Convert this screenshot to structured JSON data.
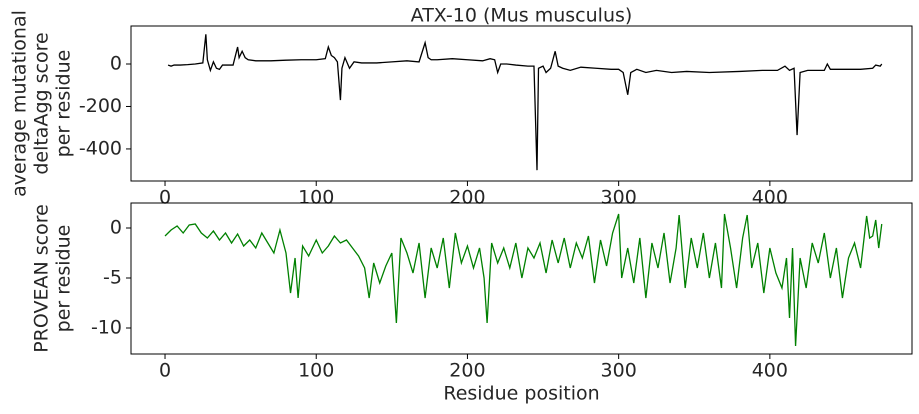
{
  "chart_data": [
    {
      "type": "line",
      "title": "ATX-10 (Mus musculus)",
      "ylabel": [
        "average mutational",
        "deltaAgg score",
        "per residue"
      ],
      "xlim": [
        -22.5,
        494
      ],
      "xticks": [
        0,
        100,
        200,
        300,
        400
      ],
      "ylim": [
        -551,
        179
      ],
      "yticks": [
        -400,
        -200,
        0
      ],
      "x": [
        2,
        4,
        6,
        10,
        15,
        20,
        25,
        27,
        28,
        30,
        32,
        34,
        36,
        38,
        45,
        48,
        49,
        51,
        53,
        55,
        60,
        70,
        80,
        90,
        100,
        106,
        108,
        110,
        112,
        114,
        116,
        117,
        119,
        122,
        125,
        130,
        140,
        150,
        160,
        168,
        172,
        174,
        176,
        180,
        190,
        200,
        210,
        215,
        218,
        220,
        222,
        226,
        232,
        240,
        244,
        246,
        247,
        250,
        252,
        255,
        258,
        260,
        263,
        268,
        275,
        285,
        295,
        300,
        303,
        306,
        308,
        312,
        318,
        325,
        335,
        345,
        360,
        380,
        395,
        405,
        410,
        413,
        416,
        418,
        420,
        425,
        436,
        438,
        440,
        460,
        468,
        470,
        473,
        474
      ],
      "series": [
        {
          "color": "#000000",
          "values": [
            -5,
            -10,
            -5,
            -5,
            -3,
            0,
            5,
            140,
            20,
            -30,
            10,
            -20,
            -25,
            -5,
            -5,
            80,
            30,
            60,
            30,
            20,
            15,
            15,
            18,
            20,
            20,
            25,
            80,
            40,
            30,
            10,
            -170,
            -20,
            30,
            -20,
            10,
            5,
            5,
            10,
            15,
            10,
            100,
            30,
            20,
            20,
            25,
            20,
            15,
            25,
            20,
            -40,
            0,
            0,
            -5,
            -10,
            -10,
            -500,
            -20,
            -10,
            -40,
            -20,
            60,
            -10,
            -20,
            -30,
            -15,
            -20,
            -25,
            -25,
            -40,
            -145,
            -40,
            -25,
            -40,
            -30,
            -40,
            -35,
            -40,
            -35,
            -30,
            -30,
            -10,
            -30,
            -20,
            -335,
            -40,
            -30,
            -30,
            0,
            -25,
            -25,
            -20,
            -5,
            -10,
            0
          ]
        }
      ]
    },
    {
      "type": "line",
      "ylabel": [
        "PROVEAN score",
        "per residue"
      ],
      "xlabel": "Residue position",
      "xlim": [
        -22.5,
        494
      ],
      "xticks": [
        0,
        100,
        200,
        300,
        400
      ],
      "ylim": [
        -12.6,
        2.5
      ],
      "yticks": [
        -10,
        -5,
        0
      ],
      "x": [
        0,
        4,
        8,
        12,
        16,
        20,
        24,
        28,
        32,
        36,
        40,
        44,
        48,
        52,
        56,
        60,
        64,
        68,
        72,
        76,
        80,
        83,
        86,
        88,
        91,
        95,
        100,
        104,
        108,
        112,
        116,
        120,
        124,
        128,
        132,
        135,
        138,
        142,
        146,
        150,
        153,
        156,
        160,
        164,
        168,
        172,
        176,
        180,
        184,
        188,
        192,
        196,
        200,
        204,
        208,
        211,
        213,
        216,
        220,
        224,
        228,
        232,
        236,
        240,
        244,
        248,
        252,
        256,
        260,
        264,
        268,
        272,
        276,
        280,
        284,
        288,
        292,
        296,
        300,
        302,
        306,
        310,
        314,
        318,
        322,
        326,
        330,
        334,
        338,
        340,
        344,
        348,
        352,
        356,
        360,
        364,
        368,
        370,
        374,
        378,
        382,
        385,
        388,
        392,
        396,
        400,
        404,
        408,
        411,
        413,
        415,
        417,
        420,
        424,
        428,
        432,
        436,
        440,
        444,
        448,
        452,
        456,
        460,
        464,
        466,
        468,
        470,
        472,
        474
      ],
      "series": [
        {
          "color": "#008000",
          "values": [
            -0.8,
            -0.2,
            0.2,
            -0.5,
            0.3,
            0.4,
            -0.5,
            -1,
            -0.3,
            -1.2,
            -0.5,
            -1.5,
            -0.6,
            -1.8,
            -1.2,
            -2,
            -0.5,
            -1.5,
            -2.5,
            -0.2,
            -2.5,
            -6.5,
            -3,
            -7,
            -1.8,
            -2.8,
            -1.2,
            -2.5,
            -1.8,
            -0.8,
            -1.5,
            -1.2,
            -2,
            -2.8,
            -4,
            -7,
            -3.5,
            -5.5,
            -3.8,
            -2.5,
            -9.5,
            -1,
            -2.5,
            -4.5,
            -1.5,
            -7,
            -2,
            -4,
            -1,
            -6,
            -0.5,
            -3.5,
            -1.8,
            -4,
            -2,
            -5,
            -9.5,
            -1.5,
            -3.5,
            -2,
            -4,
            -1.5,
            -5,
            -2,
            -3,
            -1.5,
            -4.5,
            -1.2,
            -3.5,
            -1,
            -4,
            -1.5,
            -3,
            -0.8,
            -5.5,
            -1.2,
            -3.8,
            -0.5,
            1.4,
            -5,
            -2,
            -5.5,
            -1,
            -7,
            -1.5,
            -4,
            -0.5,
            -5.5,
            -2,
            1.3,
            -6,
            -1,
            -4,
            -0.5,
            -5,
            -1.5,
            -6,
            1.4,
            -2,
            -6,
            -1,
            1.3,
            -4,
            -1.5,
            -6.5,
            -2,
            -4.5,
            -6,
            -3,
            -9,
            -2,
            -11.8,
            -3,
            -6,
            -1.5,
            -3.5,
            -0.5,
            -5,
            -2,
            -7,
            -3,
            -1.5,
            -4,
            1.2,
            -1,
            -0.8,
            0.8,
            -2,
            0.4
          ]
        }
      ]
    }
  ]
}
